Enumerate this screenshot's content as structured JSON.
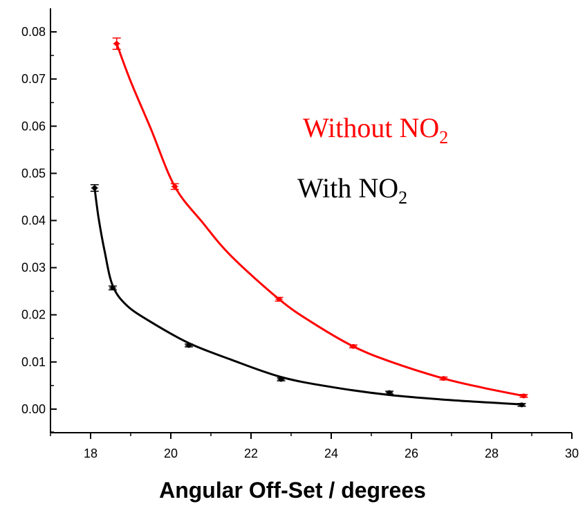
{
  "chart_data": {
    "type": "scatter",
    "title": "",
    "xlabel": "Angular Off-Set / degrees",
    "ylabel": "",
    "xlim": [
      17,
      30
    ],
    "ylim": [
      -0.005,
      0.085
    ],
    "x_ticks": [
      "18",
      "20",
      "22",
      "24",
      "26",
      "28",
      "30"
    ],
    "y_ticks": [
      "0.00",
      "0.01",
      "0.02",
      "0.03",
      "0.04",
      "0.05",
      "0.06",
      "0.07",
      "0.08"
    ],
    "grid": false,
    "legend_position": "top-right",
    "series": [
      {
        "name": "Without NO2",
        "color": "#ff0000",
        "points": [
          {
            "x": 18.65,
            "y": 0.0775,
            "err": 0.0012
          },
          {
            "x": 20.1,
            "y": 0.0472,
            "err": 0.0006
          },
          {
            "x": 22.7,
            "y": 0.0233,
            "err": 0.0004
          },
          {
            "x": 24.55,
            "y": 0.0133,
            "err": 0.0003
          },
          {
            "x": 26.8,
            "y": 0.0065,
            "err": 0.0003
          },
          {
            "x": 28.8,
            "y": 0.0028,
            "err": 0.0003
          }
        ],
        "fit": [
          [
            18.65,
            0.0775
          ],
          [
            19.0,
            0.0695
          ],
          [
            19.5,
            0.0595
          ],
          [
            20.1,
            0.0472
          ],
          [
            20.8,
            0.0395
          ],
          [
            21.5,
            0.0325
          ],
          [
            22.7,
            0.0233
          ],
          [
            23.5,
            0.0185
          ],
          [
            24.55,
            0.0133
          ],
          [
            25.5,
            0.01
          ],
          [
            26.8,
            0.0065
          ],
          [
            27.8,
            0.0045
          ],
          [
            28.8,
            0.0028
          ]
        ]
      },
      {
        "name": "With NO2",
        "color": "#000000",
        "points": [
          {
            "x": 18.1,
            "y": 0.0469,
            "err": 0.0007
          },
          {
            "x": 18.55,
            "y": 0.0257,
            "err": 0.0004
          },
          {
            "x": 20.45,
            "y": 0.0135,
            "err": 0.0003
          },
          {
            "x": 22.75,
            "y": 0.0063,
            "err": 0.0003
          },
          {
            "x": 25.45,
            "y": 0.0035,
            "err": 0.0003
          },
          {
            "x": 28.75,
            "y": 0.0009,
            "err": 0.0003
          }
        ],
        "fit": [
          [
            18.1,
            0.0469
          ],
          [
            18.2,
            0.0405
          ],
          [
            18.35,
            0.0335
          ],
          [
            18.55,
            0.0262
          ],
          [
            18.9,
            0.022
          ],
          [
            19.5,
            0.0185
          ],
          [
            20.45,
            0.014
          ],
          [
            21.5,
            0.0105
          ],
          [
            22.75,
            0.0068
          ],
          [
            24.0,
            0.0047
          ],
          [
            25.45,
            0.003
          ],
          [
            27.0,
            0.0019
          ],
          [
            28.75,
            0.001
          ]
        ]
      }
    ]
  },
  "legend": {
    "without_main": "Without NO",
    "without_sub": "2",
    "with_main": "With NO",
    "with_sub": "2"
  }
}
